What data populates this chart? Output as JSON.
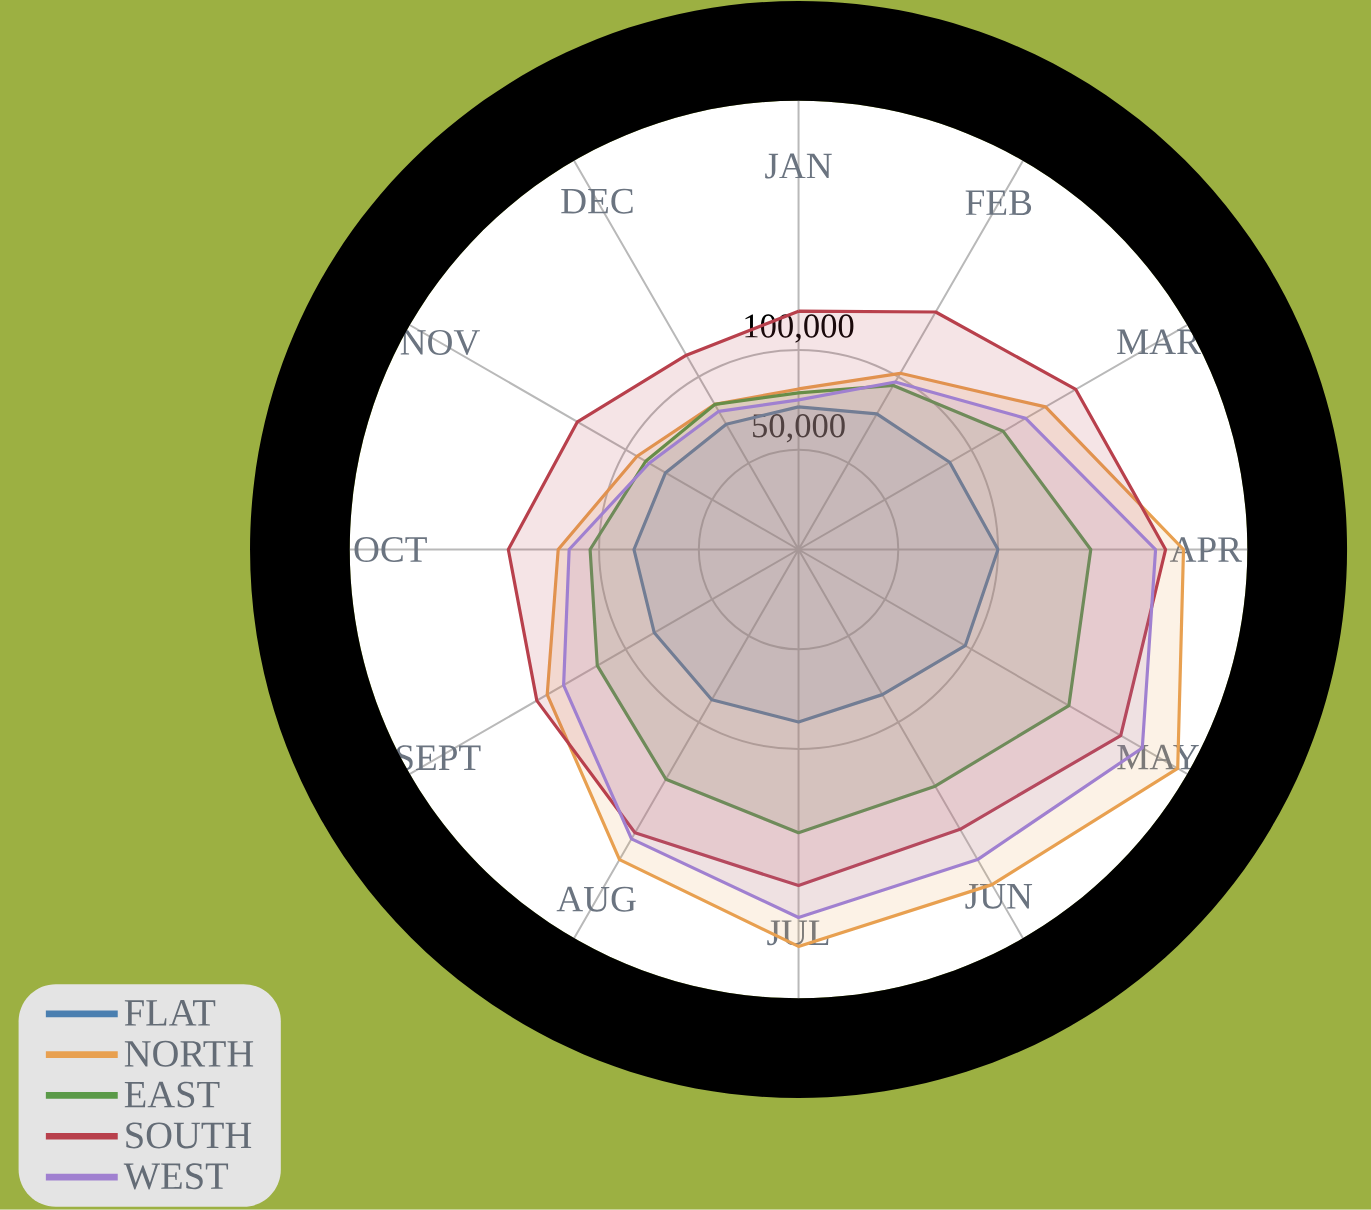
{
  "chart_data": {
    "type": "radar",
    "categories": [
      "JAN",
      "FEB",
      "MAR",
      "APR",
      "MAY",
      "JUN",
      "JUL",
      "AUG",
      "SEPT",
      "OCT",
      "NOV",
      "DEC"
    ],
    "series": [
      {
        "name": "FLAT",
        "color": "#4a7fb0",
        "values": [
          71500,
          78500,
          87500,
          100000,
          96500,
          84000,
          86500,
          87000,
          83500,
          82500,
          77000,
          72500
        ]
      },
      {
        "name": "NORTH",
        "color": "#e8a050",
        "values": [
          80500,
          102000,
          143000,
          193000,
          219500,
          194000,
          199000,
          179500,
          145500,
          120500,
          93500,
          84000
        ]
      },
      {
        "name": "EAST",
        "color": "#5a9a48",
        "values": [
          78500,
          95000,
          118500,
          146500,
          156500,
          137000,
          142000,
          133000,
          116500,
          104500,
          88500,
          84000
        ]
      },
      {
        "name": "SOUTH",
        "color": "#b8404c",
        "values": [
          119500,
          137500,
          160500,
          184000,
          186500,
          162000,
          168500,
          164000,
          151500,
          145500,
          128000,
          112500
        ]
      },
      {
        "name": "WEST",
        "color": "#a080d0",
        "values": [
          75000,
          97000,
          131500,
          179000,
          199000,
          179500,
          184500,
          167500,
          136000,
          115000,
          86500,
          80000
        ]
      }
    ],
    "ylim": [
      0,
      275000
    ],
    "yticks": [
      {
        "value": 50000,
        "label": "50,000"
      },
      {
        "value": 100000,
        "label": "100,000"
      }
    ],
    "grid": true,
    "legend": "bottom left"
  }
}
